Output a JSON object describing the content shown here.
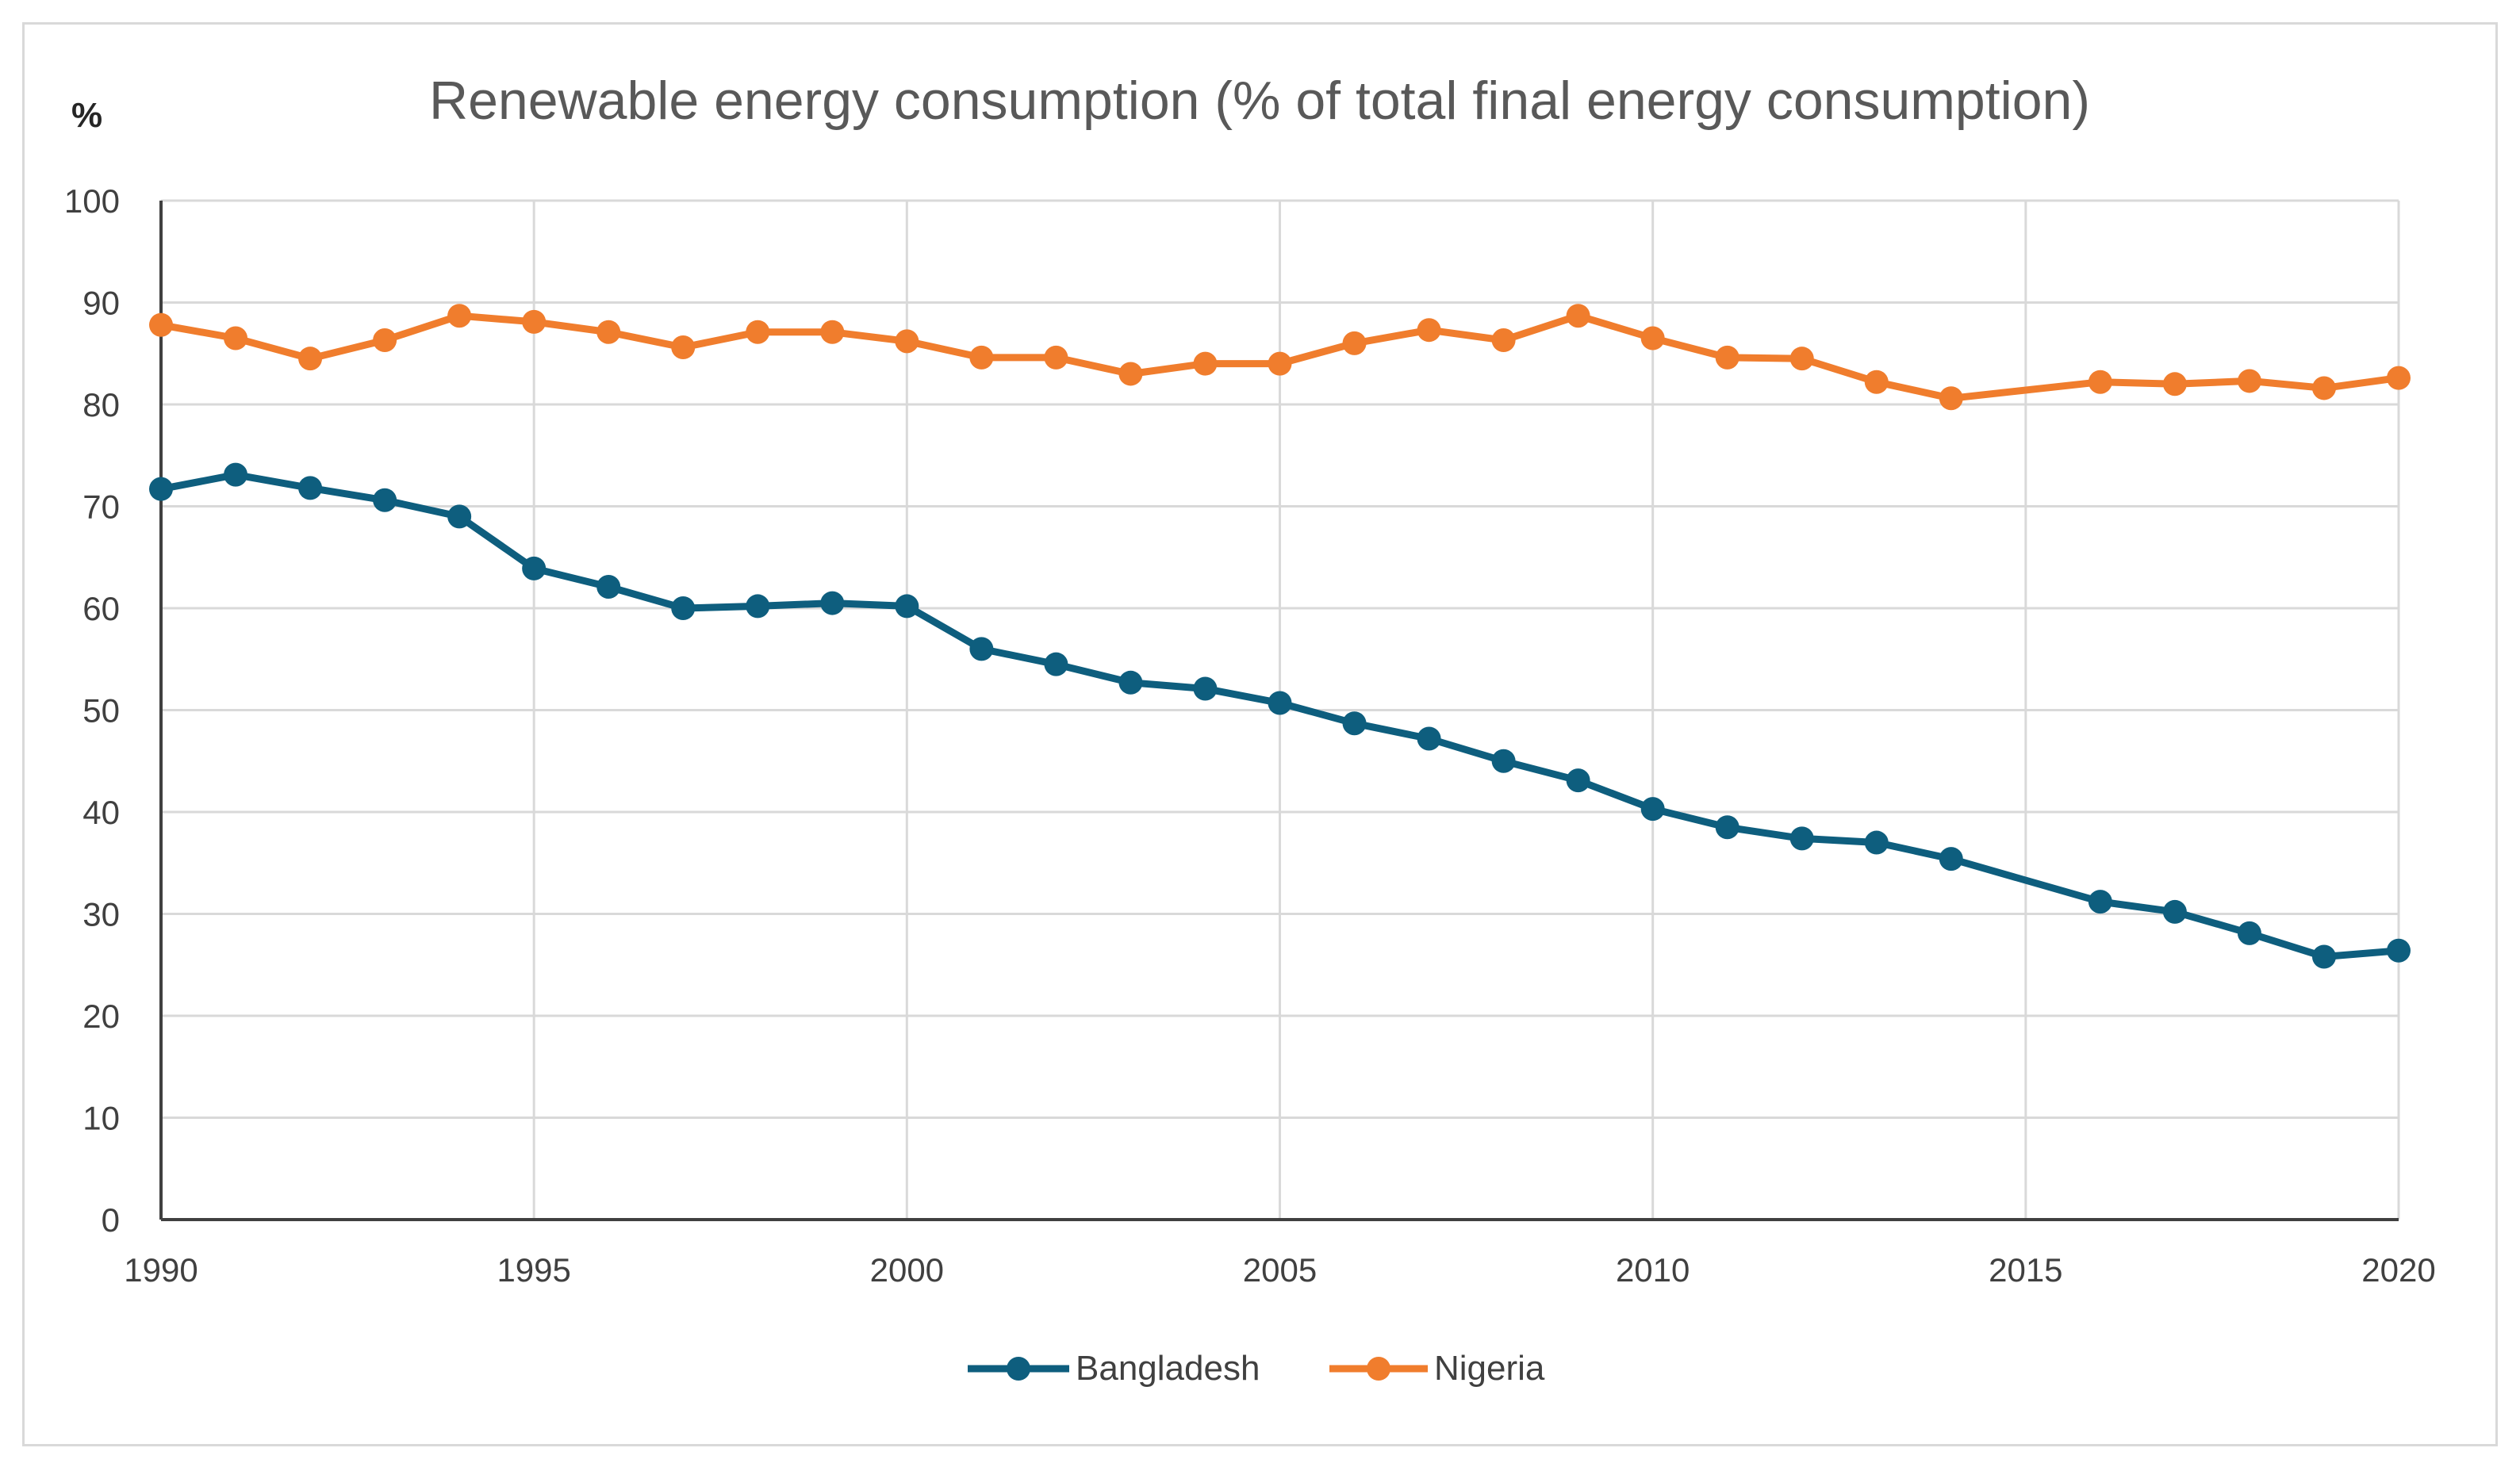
{
  "chart_data": {
    "type": "line",
    "title": "Renewable energy consumption (% of total final energy consumption)",
    "ylabel": "%",
    "xlabel": "",
    "xlim": [
      1990,
      2020
    ],
    "ylim": [
      0,
      100
    ],
    "x_ticks": [
      "1990",
      "1995",
      "2000",
      "2005",
      "2010",
      "2015",
      "2020"
    ],
    "y_ticks": [
      "0",
      "10",
      "20",
      "30",
      "40",
      "50",
      "60",
      "70",
      "80",
      "90",
      "100"
    ],
    "grid": true,
    "legend_position": "bottom",
    "series": [
      {
        "name": "Bangladesh",
        "color": "#0e5e7e",
        "x": [
          1990,
          1991,
          1992,
          1993,
          1994,
          1995,
          1996,
          1997,
          1998,
          1999,
          2000,
          2001,
          2002,
          2003,
          2004,
          2005,
          2006,
          2007,
          2008,
          2009,
          2010,
          2011,
          2012,
          2013,
          2014,
          2016,
          2017,
          2018,
          2019,
          2020
        ],
        "values": [
          71.7,
          73.1,
          71.8,
          70.6,
          69.0,
          63.9,
          62.1,
          60.0,
          60.2,
          60.5,
          60.2,
          56.0,
          54.5,
          52.7,
          52.1,
          50.7,
          48.7,
          47.2,
          45.0,
          43.1,
          40.3,
          38.5,
          37.4,
          37.0,
          35.4,
          31.2,
          30.2,
          28.1,
          25.8,
          26.4
        ]
      },
      {
        "name": "Nigeria",
        "color": "#f07d2d",
        "x": [
          1990,
          1991,
          1992,
          1993,
          1994,
          1995,
          1996,
          1997,
          1998,
          1999,
          2000,
          2001,
          2002,
          2003,
          2004,
          2005,
          2006,
          2007,
          2008,
          2009,
          2010,
          2011,
          2012,
          2013,
          2014,
          2016,
          2017,
          2018,
          2019,
          2020
        ],
        "values": [
          87.8,
          86.5,
          84.5,
          86.3,
          88.7,
          88.1,
          87.1,
          85.6,
          87.1,
          87.1,
          86.2,
          84.6,
          84.6,
          83.0,
          84.0,
          84.0,
          86.0,
          87.3,
          86.3,
          88.7,
          86.5,
          84.6,
          84.5,
          82.2,
          80.6,
          82.2,
          82.0,
          82.3,
          81.6,
          82.6
        ]
      }
    ]
  }
}
